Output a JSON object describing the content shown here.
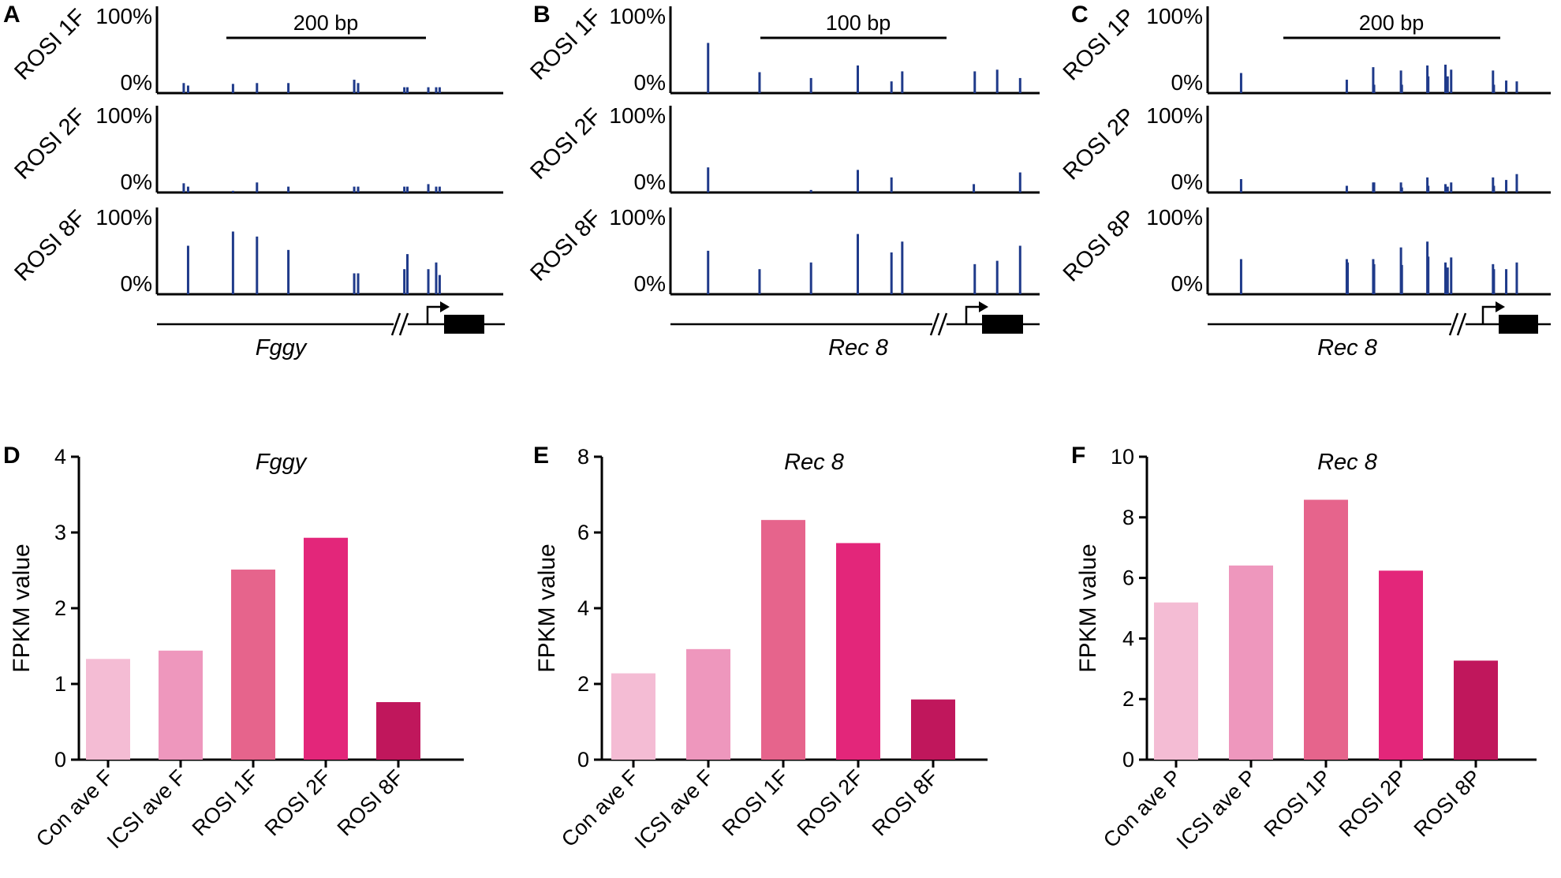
{
  "colors": {
    "methylation_bar": "#1f3a8a",
    "bar_shades": [
      "#f4bcd4",
      "#ee97bd",
      "#e6648c",
      "#e3267a",
      "#c0175c"
    ]
  },
  "chart_data": [
    {
      "panel": "A",
      "type": "methylation_track",
      "gene": "Fggy",
      "scale_bar_label": "200 bp",
      "y_top_label": "100%",
      "y_bottom_label": "0%",
      "x_range_bp": [
        0,
        400
      ],
      "rows": [
        {
          "label": "ROSI 1F",
          "sites": [
            {
              "pos": 27,
              "pct": 12
            },
            {
              "pos": 37,
              "pct": 9
            },
            {
              "pos": 140,
              "pct": 11
            },
            {
              "pos": 195,
              "pct": 12
            },
            {
              "pos": 267,
              "pct": 12
            },
            {
              "pos": 418,
              "pct": 16
            },
            {
              "pos": 427,
              "pct": 12
            },
            {
              "pos": 533,
              "pct": 7
            },
            {
              "pos": 540,
              "pct": 7
            },
            {
              "pos": 588,
              "pct": 7
            },
            {
              "pos": 606,
              "pct": 7
            },
            {
              "pos": 614,
              "pct": 7
            }
          ]
        },
        {
          "label": "ROSI 2F",
          "sites": [
            {
              "pos": 27,
              "pct": 11
            },
            {
              "pos": 37,
              "pct": 7
            },
            {
              "pos": 140,
              "pct": 2
            },
            {
              "pos": 195,
              "pct": 12
            },
            {
              "pos": 267,
              "pct": 7
            },
            {
              "pos": 418,
              "pct": 7
            },
            {
              "pos": 427,
              "pct": 7
            },
            {
              "pos": 533,
              "pct": 7
            },
            {
              "pos": 540,
              "pct": 7
            },
            {
              "pos": 588,
              "pct": 10
            },
            {
              "pos": 606,
              "pct": 7
            },
            {
              "pos": 614,
              "pct": 7
            }
          ]
        },
        {
          "label": "ROSI 8F",
          "sites": [
            {
              "pos": 37,
              "pct": 58
            },
            {
              "pos": 140,
              "pct": 75
            },
            {
              "pos": 195,
              "pct": 69
            },
            {
              "pos": 267,
              "pct": 53
            },
            {
              "pos": 418,
              "pct": 25
            },
            {
              "pos": 427,
              "pct": 25
            },
            {
              "pos": 533,
              "pct": 30
            },
            {
              "pos": 540,
              "pct": 48
            },
            {
              "pos": 588,
              "pct": 30
            },
            {
              "pos": 606,
              "pct": 38
            },
            {
              "pos": 614,
              "pct": 23
            }
          ]
        }
      ]
    },
    {
      "panel": "B",
      "type": "methylation_track",
      "gene": "Rec 8",
      "scale_bar_label": "100 bp",
      "y_top_label": "100%",
      "y_bottom_label": "0%",
      "x_range_bp": [
        0,
        200
      ],
      "rows": [
        {
          "label": "ROSI 1F",
          "sites": [
            {
              "pos": 40,
              "pct": 60
            },
            {
              "pos": 150,
              "pct": 25
            },
            {
              "pos": 260,
              "pct": 18
            },
            {
              "pos": 360,
              "pct": 33
            },
            {
              "pos": 432,
              "pct": 14
            },
            {
              "pos": 455,
              "pct": 26
            },
            {
              "pos": 610,
              "pct": 26
            },
            {
              "pos": 658,
              "pct": 28
            },
            {
              "pos": 707,
              "pct": 18
            }
          ]
        },
        {
          "label": "ROSI 2F",
          "sites": [
            {
              "pos": 40,
              "pct": 30
            },
            {
              "pos": 260,
              "pct": 3
            },
            {
              "pos": 360,
              "pct": 27
            },
            {
              "pos": 432,
              "pct": 18
            },
            {
              "pos": 608,
              "pct": 10
            },
            {
              "pos": 707,
              "pct": 24
            }
          ]
        },
        {
          "label": "ROSI 8F",
          "sites": [
            {
              "pos": 40,
              "pct": 52
            },
            {
              "pos": 150,
              "pct": 30
            },
            {
              "pos": 260,
              "pct": 38
            },
            {
              "pos": 360,
              "pct": 72
            },
            {
              "pos": 432,
              "pct": 50
            },
            {
              "pos": 455,
              "pct": 63
            },
            {
              "pos": 610,
              "pct": 36
            },
            {
              "pos": 658,
              "pct": 40
            },
            {
              "pos": 707,
              "pct": 58
            }
          ]
        }
      ]
    },
    {
      "panel": "C",
      "type": "methylation_track",
      "gene": "Rec 8",
      "scale_bar_label": "200 bp",
      "y_top_label": "100%",
      "y_bottom_label": "0%",
      "x_range_bp": [
        0,
        400
      ],
      "rows": [
        {
          "label": "ROSI 1P",
          "sites": [
            {
              "pos": 33,
              "pct": 24
            },
            {
              "pos": 273,
              "pct": 16
            },
            {
              "pos": 333,
              "pct": 31
            },
            {
              "pos": 335,
              "pct": 10
            },
            {
              "pos": 396,
              "pct": 27
            },
            {
              "pos": 398,
              "pct": 10
            },
            {
              "pos": 456,
              "pct": 33
            },
            {
              "pos": 458,
              "pct": 20
            },
            {
              "pos": 497,
              "pct": 34
            },
            {
              "pos": 502,
              "pct": 20
            },
            {
              "pos": 510,
              "pct": 28
            },
            {
              "pos": 605,
              "pct": 27
            },
            {
              "pos": 607,
              "pct": 10
            },
            {
              "pos": 635,
              "pct": 15
            },
            {
              "pos": 659,
              "pct": 14
            }
          ]
        },
        {
          "label": "ROSI 2P",
          "sites": [
            {
              "pos": 33,
              "pct": 16
            },
            {
              "pos": 273,
              "pct": 8
            },
            {
              "pos": 333,
              "pct": 12
            },
            {
              "pos": 335,
              "pct": 12
            },
            {
              "pos": 396,
              "pct": 12
            },
            {
              "pos": 398,
              "pct": 6
            },
            {
              "pos": 456,
              "pct": 18
            },
            {
              "pos": 458,
              "pct": 8
            },
            {
              "pos": 497,
              "pct": 10
            },
            {
              "pos": 502,
              "pct": 7
            },
            {
              "pos": 510,
              "pct": 12
            },
            {
              "pos": 605,
              "pct": 18
            },
            {
              "pos": 607,
              "pct": 8
            },
            {
              "pos": 635,
              "pct": 15
            },
            {
              "pos": 659,
              "pct": 22
            }
          ]
        },
        {
          "label": "ROSI 8P",
          "sites": [
            {
              "pos": 33,
              "pct": 42
            },
            {
              "pos": 273,
              "pct": 42
            },
            {
              "pos": 275,
              "pct": 38
            },
            {
              "pos": 333,
              "pct": 42
            },
            {
              "pos": 335,
              "pct": 36
            },
            {
              "pos": 396,
              "pct": 56
            },
            {
              "pos": 398,
              "pct": 35
            },
            {
              "pos": 456,
              "pct": 63
            },
            {
              "pos": 458,
              "pct": 45
            },
            {
              "pos": 497,
              "pct": 38
            },
            {
              "pos": 502,
              "pct": 32
            },
            {
              "pos": 510,
              "pct": 44
            },
            {
              "pos": 605,
              "pct": 36
            },
            {
              "pos": 607,
              "pct": 30
            },
            {
              "pos": 635,
              "pct": 30
            },
            {
              "pos": 659,
              "pct": 38
            }
          ]
        }
      ]
    },
    {
      "panel": "D",
      "type": "bar",
      "title": "Fggy",
      "ylabel": "FPKM value",
      "ylim": [
        0,
        4
      ],
      "yticks": [
        "0",
        "1",
        "2",
        "3",
        "4"
      ],
      "categories": [
        "Con ave F",
        "ICSI ave F",
        "ROSI 1F",
        "ROSI 2F",
        "ROSI 8F"
      ],
      "values": [
        1.33,
        1.44,
        2.51,
        2.93,
        0.76
      ]
    },
    {
      "panel": "E",
      "type": "bar",
      "title": "Rec 8",
      "ylabel": "FPKM value",
      "ylim": [
        0,
        8
      ],
      "yticks": [
        "0",
        "2",
        "4",
        "6",
        "8"
      ],
      "categories": [
        "Con ave F",
        "ICSI ave F",
        "ROSI 1F",
        "ROSI 2F",
        "ROSI 8F"
      ],
      "values": [
        2.28,
        2.92,
        6.33,
        5.72,
        1.59
      ]
    },
    {
      "panel": "F",
      "type": "bar",
      "title": "Rec 8",
      "ylabel": "FPKM value",
      "ylim": [
        0,
        10
      ],
      "yticks": [
        "0",
        "2",
        "4",
        "6",
        "8",
        "10"
      ],
      "categories": [
        "Con ave P",
        "ICSI ave P",
        "ROSI 1P",
        "ROSI 2P",
        "ROSI 8P"
      ],
      "values": [
        5.19,
        6.41,
        8.58,
        6.24,
        3.27
      ]
    }
  ]
}
